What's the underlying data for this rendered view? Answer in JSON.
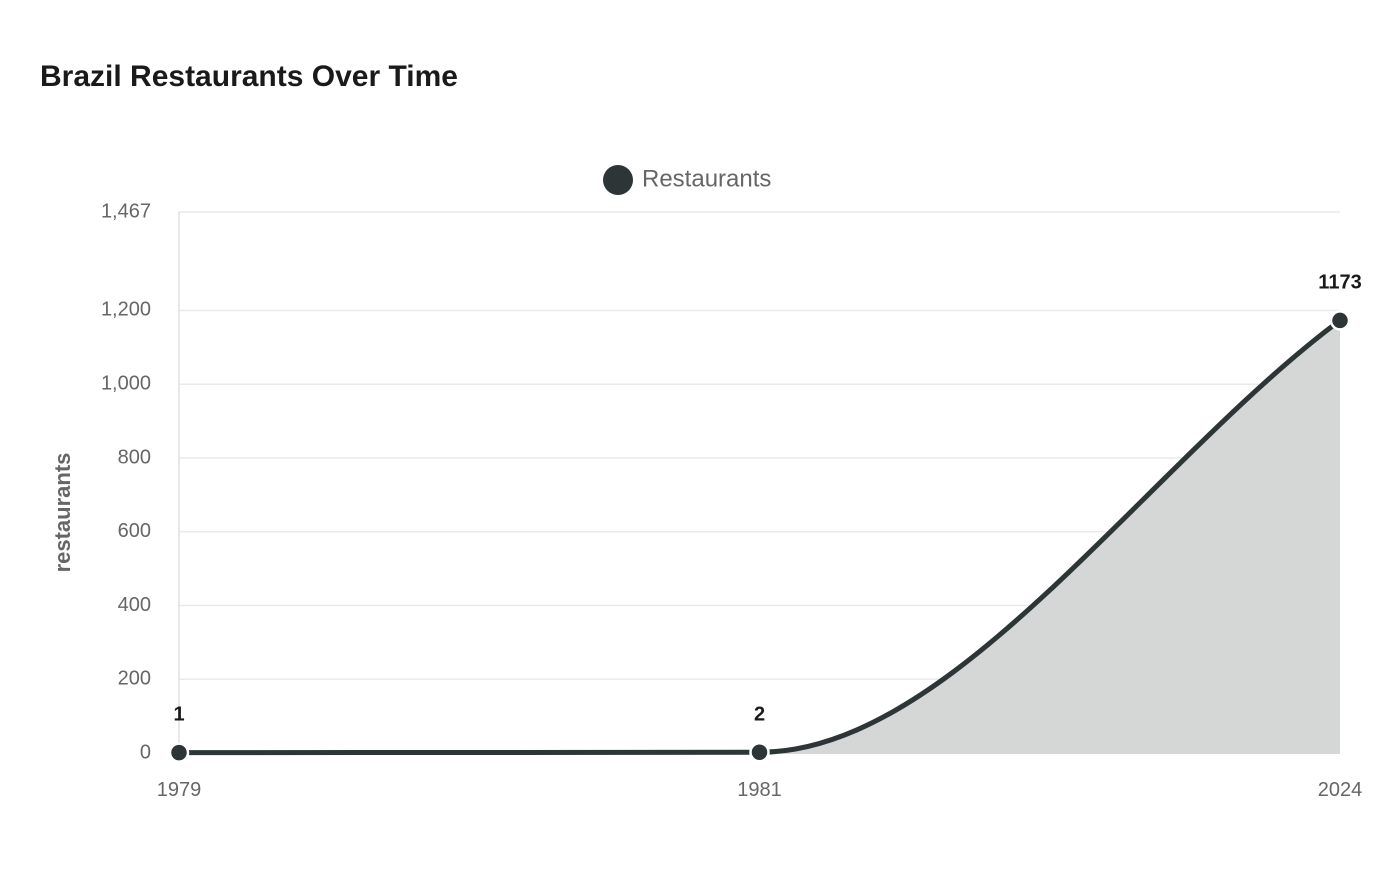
{
  "chart_data": {
    "type": "area",
    "title": "Brazil Restaurants Over Time",
    "ylabel": "restaurants",
    "xlabel": "",
    "categories": [
      "1979",
      "1981",
      "2024"
    ],
    "series": [
      {
        "name": "Restaurants",
        "values": [
          1,
          2,
          1173
        ],
        "color": "#2d3536",
        "fill": "#d5d7d7"
      }
    ],
    "yticks": [
      {
        "value": 0,
        "label": "0"
      },
      {
        "value": 200,
        "label": "200"
      },
      {
        "value": 400,
        "label": "400"
      },
      {
        "value": 600,
        "label": "600"
      },
      {
        "value": 800,
        "label": "800"
      },
      {
        "value": 1000,
        "label": "1,000"
      },
      {
        "value": 1200,
        "label": "1,200"
      },
      {
        "value": 1467,
        "label": "1,467"
      }
    ],
    "data_labels": [
      "1",
      "2",
      "1173"
    ],
    "ylim": [
      0,
      1467
    ],
    "grid": true,
    "legend_position": "top-center"
  }
}
